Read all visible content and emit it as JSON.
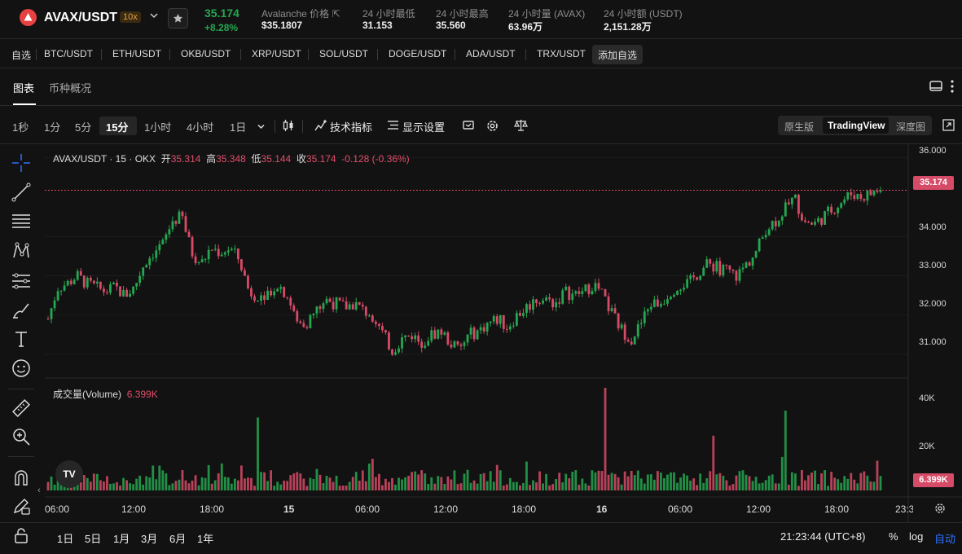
{
  "header": {
    "pair": "AVAX/USDT",
    "leverage": "10x",
    "last_price": "35.174",
    "change_pct": "+8.28%",
    "stats": [
      {
        "label": "Avalanche 价格",
        "value": "$35.1807"
      },
      {
        "label": "24 小时最低",
        "value": "31.153"
      },
      {
        "label": "24 小时最高",
        "value": "35.560"
      },
      {
        "label": "24 小时量 (AVAX)",
        "value": "63.96万"
      },
      {
        "label": "24 小时额 (USDT)",
        "value": "2,151.28万"
      }
    ]
  },
  "watchlist": {
    "label": "自选",
    "items": [
      "BTC/USDT",
      "ETH/USDT",
      "OKB/USDT",
      "XRP/USDT",
      "SOL/USDT",
      "DOGE/USDT",
      "ADA/USDT",
      "TRX/USDT"
    ],
    "add_label": "添加自选"
  },
  "tabs": [
    "图表",
    "币种概况"
  ],
  "toolbar": {
    "timeframes": [
      "1秒",
      "1分",
      "5分",
      "15分",
      "1小时",
      "4小时",
      "1日"
    ],
    "active_timeframe": "15分",
    "indicators_label": "技术指标",
    "display_label": "显示设置",
    "versions": [
      "原生版",
      "TradingView",
      "深度图"
    ],
    "active_version": "TradingView"
  },
  "chart": {
    "ohlc": {
      "symbol": "AVAX/USDT · 15 · OKX",
      "open_label": "开",
      "open": "35.314",
      "high_label": "高",
      "high": "35.348",
      "low_label": "低",
      "low": "35.144",
      "close_label": "收",
      "close": "35.174",
      "change": "-0.128 (-0.36%)"
    },
    "price_tag": "35.174",
    "volume_legend": "成交量(Volume)",
    "volume_value": "6.399K",
    "volume_tag": "6.399K",
    "tv_logo": "TV",
    "y_ticks": [
      "36.000",
      "34.000",
      "33.000",
      "32.000",
      "31.000"
    ],
    "vol_ticks": [
      "40K",
      "20K"
    ],
    "x_ticks": [
      "06:00",
      "12:00",
      "18:00",
      "15",
      "06:00",
      "12:00",
      "18:00",
      "16",
      "06:00",
      "12:00",
      "18:00",
      "23:3"
    ]
  },
  "chart_data": {
    "type": "candlestick",
    "symbol": "AVAX/USDT",
    "interval": "15",
    "ylim": [
      30.4,
      36.2
    ],
    "close_path": [
      31.9,
      32.7,
      32.8,
      33.0,
      32.8,
      32.7,
      32.6,
      32.7,
      32.5,
      32.7,
      33.3,
      33.6,
      33.8,
      34.4,
      34.5,
      33.6,
      33.3,
      33.7,
      33.6,
      33.7,
      33.4,
      32.6,
      32.5,
      32.6,
      32.8,
      32.5,
      31.8,
      31.8,
      32.1,
      32.4,
      32.3,
      32.2,
      32.3,
      32.1,
      32.0,
      31.5,
      31.1,
      31.4,
      31.5,
      31.3,
      31.5,
      31.6,
      31.3,
      31.1,
      31.5,
      31.6,
      31.8,
      31.9,
      31.7,
      32.0,
      32.2,
      32.4,
      32.4,
      32.3,
      32.6,
      32.5,
      32.6,
      32.8,
      32.5,
      32.0,
      31.6,
      31.4,
      31.8,
      32.3,
      32.3,
      32.6,
      32.8,
      32.8,
      33.1,
      33.3,
      33.2,
      33.1,
      33.0,
      33.3,
      33.6,
      34.2,
      34.4,
      34.7,
      35.0,
      34.4,
      34.3,
      34.5,
      34.7,
      34.9,
      35.1,
      35.0,
      35.1,
      35.2
    ],
    "volume_peaks_k": [
      45,
      40,
      35,
      32,
      24
    ],
    "volume_last_k": 6.399
  },
  "bottom": {
    "ranges": [
      "1日",
      "5日",
      "1月",
      "3月",
      "6月",
      "1年"
    ],
    "clock": "21:23:44 (UTC+8)",
    "pct": "%",
    "log": "log",
    "auto": "自动"
  },
  "colors": {
    "up": "#25a750",
    "down": "#d64b67",
    "background": "#121212",
    "accent": "#2f6fff"
  }
}
